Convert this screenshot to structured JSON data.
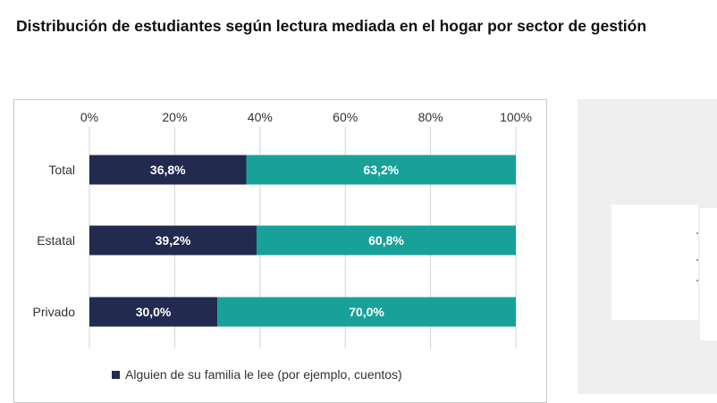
{
  "title": "Distribución de estudiantes según lectura mediada en el hogar por sector de gestión",
  "chart_data": {
    "type": "bar",
    "orientation": "horizontal",
    "stacked": true,
    "percent_scale": true,
    "categories": [
      "Total",
      "Estatal",
      "Privado"
    ],
    "series": [
      {
        "name": "Alguien de su familia le lee (por ejemplo, cuentos)",
        "values": [
          36.8,
          39.2,
          30.0
        ],
        "labels": [
          "36,8%",
          "39,2%",
          "30,0%"
        ],
        "color": "#232a4f"
      },
      {
        "values": [
          63.2,
          60.8,
          70.0
        ],
        "labels": [
          "63,2%",
          "60,8%",
          "70,0%"
        ],
        "color": "#17a199"
      }
    ],
    "xlim": [
      0,
      100
    ],
    "xticks": [
      0,
      20,
      40,
      60,
      80,
      100
    ],
    "xtick_labels": [
      "0%",
      "20%",
      "40%",
      "60%",
      "80%",
      "100%"
    ],
    "x_axis_position": "top",
    "grid": true,
    "legend_position": "bottom",
    "legend_entries": [
      "Alguien de su familia le lee (por ejemplo, cuentos)"
    ],
    "gridline_color": "#d4d4d4",
    "label_color": "#ffffff"
  }
}
